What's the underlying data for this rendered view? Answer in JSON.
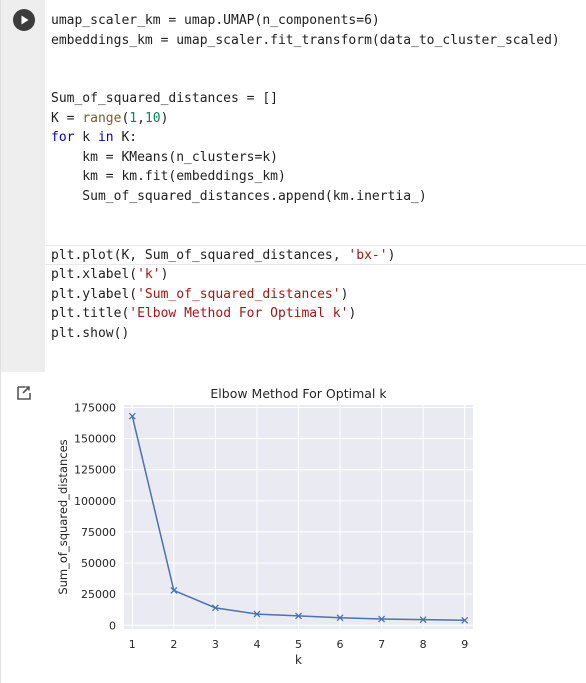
{
  "code_cell": {
    "lines": [
      [
        {
          "t": "umap_scaler_km = umap.UMAP(n_components=6)",
          "c": ""
        }
      ],
      [
        {
          "t": "embeddings_km = umap_scaler.fit_transform(data_to_cluster_scaled)",
          "c": ""
        }
      ],
      [],
      [],
      [
        {
          "t": "Sum_of_squared_distances = []",
          "c": ""
        }
      ],
      [
        {
          "t": "K = ",
          "c": ""
        },
        {
          "t": "range",
          "c": "bi"
        },
        {
          "t": "(",
          "c": ""
        },
        {
          "t": "1",
          "c": "num"
        },
        {
          "t": ",",
          "c": ""
        },
        {
          "t": "10",
          "c": "num"
        },
        {
          "t": ")",
          "c": ""
        }
      ],
      [
        {
          "t": "for",
          "c": "kw"
        },
        {
          "t": " k ",
          "c": ""
        },
        {
          "t": "in",
          "c": "kw"
        },
        {
          "t": " K:",
          "c": ""
        }
      ],
      [
        {
          "t": "    km = KMeans(n_clusters=k)",
          "c": ""
        }
      ],
      [
        {
          "t": "    km = km.fit(embeddings_km)",
          "c": ""
        }
      ],
      [
        {
          "t": "    Sum_of_squared_distances.append(km.inertia_)",
          "c": ""
        }
      ],
      [],
      [],
      [
        {
          "t": "plt.plot(K, Sum_of_squared_distances, ",
          "c": ""
        },
        {
          "t": "'bx-'",
          "c": "str"
        },
        {
          "t": ")",
          "c": ""
        }
      ],
      [
        {
          "t": "plt.xlabel(",
          "c": ""
        },
        {
          "t": "'k'",
          "c": "str"
        },
        {
          "t": ")",
          "c": ""
        }
      ],
      [
        {
          "t": "plt.ylabel(",
          "c": ""
        },
        {
          "t": "'Sum_of_squared_distances'",
          "c": "str"
        },
        {
          "t": ")",
          "c": ""
        }
      ],
      [
        {
          "t": "plt.title(",
          "c": ""
        },
        {
          "t": "'Elbow Method For Optimal k'",
          "c": "str"
        },
        {
          "t": ")",
          "c": ""
        }
      ],
      [
        {
          "t": "plt.show()",
          "c": ""
        }
      ]
    ]
  },
  "icons": {
    "run": "play-icon",
    "output": "output-icon"
  },
  "colors": {
    "line": "#4c72b0",
    "plot_bg": "#eaeaf2",
    "grid": "#ffffff"
  },
  "chart_data": {
    "type": "line",
    "title": "Elbow Method For Optimal k",
    "xlabel": "k",
    "ylabel": "Sum_of_squared_distances",
    "x": [
      1,
      2,
      3,
      4,
      5,
      6,
      7,
      8,
      9
    ],
    "series": [
      {
        "values": [
          168000,
          28000,
          14000,
          9000,
          7500,
          6000,
          5000,
          4500,
          4000
        ],
        "marker": "x",
        "style": "bx-"
      }
    ],
    "xticks": [
      "1",
      "2",
      "3",
      "4",
      "5",
      "6",
      "7",
      "8",
      "9"
    ],
    "yticks": [
      "0",
      "25000",
      "50000",
      "75000",
      "100000",
      "125000",
      "150000",
      "175000"
    ],
    "ytick_values": [
      0,
      25000,
      50000,
      75000,
      100000,
      125000,
      150000,
      175000
    ],
    "xlim": [
      0.8,
      9.2
    ],
    "ylim": [
      -3000,
      177000
    ],
    "grid": true
  }
}
